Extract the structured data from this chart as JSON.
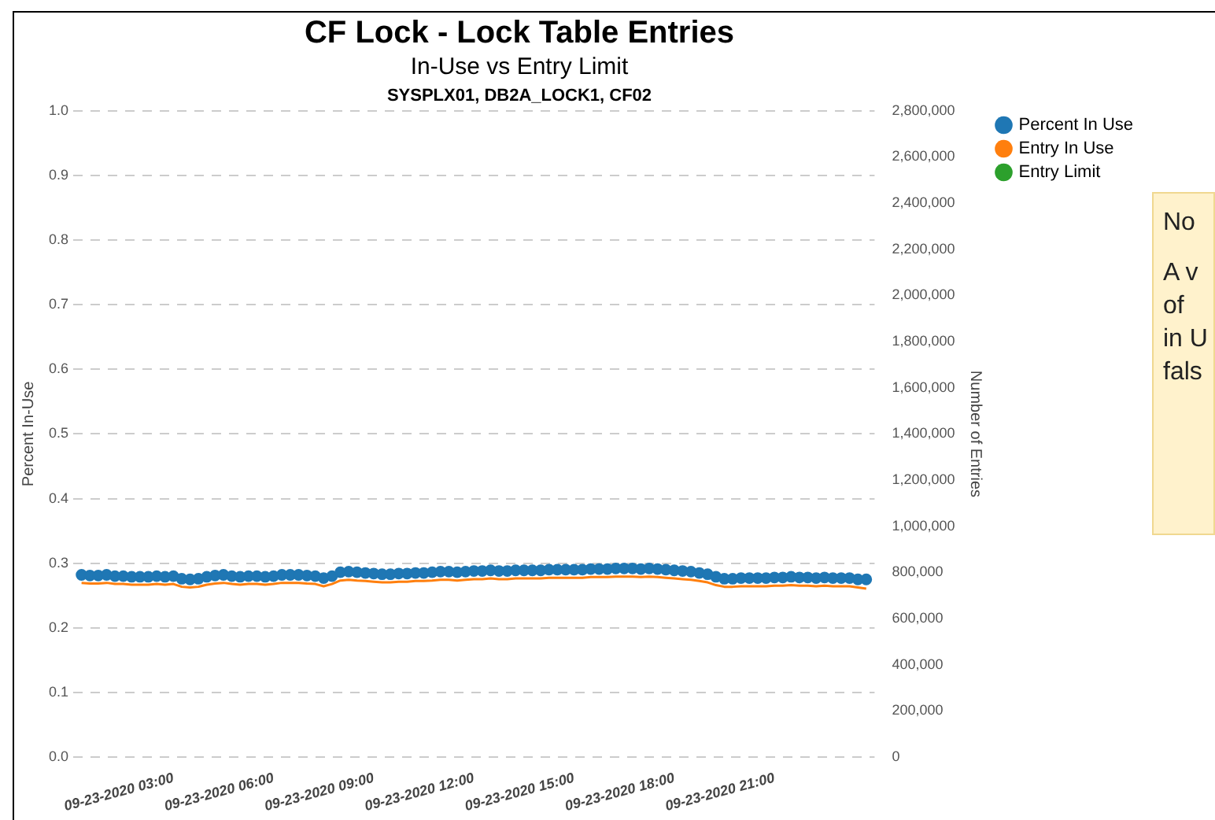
{
  "chart_data": {
    "type": "line",
    "title": "CF Lock - Lock Table Entries",
    "subtitle": "In-Use vs Entry Limit",
    "annotations": [
      "SYSPLX01, DB2A_LOCK1, CF02",
      "No",
      "A v",
      "of",
      "in U",
      "fals"
    ],
    "ylabel": "Percent In-Use",
    "y2label": "Number of Entries",
    "x": [
      "2020-09-23T00:15",
      "2020-09-23T00:30",
      "2020-09-23T00:45",
      "2020-09-23T01:00",
      "2020-09-23T01:15",
      "2020-09-23T01:30",
      "2020-09-23T01:45",
      "2020-09-23T02:00",
      "2020-09-23T02:15",
      "2020-09-23T02:30",
      "2020-09-23T02:45",
      "2020-09-23T03:00",
      "2020-09-23T03:15",
      "2020-09-23T03:30",
      "2020-09-23T03:45",
      "2020-09-23T04:00",
      "2020-09-23T04:15",
      "2020-09-23T04:30",
      "2020-09-23T04:45",
      "2020-09-23T05:00",
      "2020-09-23T05:15",
      "2020-09-23T05:30",
      "2020-09-23T05:45",
      "2020-09-23T06:00",
      "2020-09-23T06:15",
      "2020-09-23T06:30",
      "2020-09-23T06:45",
      "2020-09-23T07:00",
      "2020-09-23T07:15",
      "2020-09-23T07:30",
      "2020-09-23T07:45",
      "2020-09-23T08:00",
      "2020-09-23T08:15",
      "2020-09-23T08:30",
      "2020-09-23T08:45",
      "2020-09-23T09:00",
      "2020-09-23T09:15",
      "2020-09-23T09:30",
      "2020-09-23T09:45",
      "2020-09-23T10:00",
      "2020-09-23T10:15",
      "2020-09-23T10:30",
      "2020-09-23T10:45",
      "2020-09-23T11:00",
      "2020-09-23T11:15",
      "2020-09-23T11:30",
      "2020-09-23T11:45",
      "2020-09-23T12:00",
      "2020-09-23T12:15",
      "2020-09-23T12:30",
      "2020-09-23T12:45",
      "2020-09-23T13:00",
      "2020-09-23T13:15",
      "2020-09-23T13:30",
      "2020-09-23T13:45",
      "2020-09-23T14:00",
      "2020-09-23T14:15",
      "2020-09-23T14:30",
      "2020-09-23T14:45",
      "2020-09-23T15:00",
      "2020-09-23T15:15",
      "2020-09-23T15:30",
      "2020-09-23T15:45",
      "2020-09-23T16:00",
      "2020-09-23T16:15",
      "2020-09-23T16:30",
      "2020-09-23T16:45",
      "2020-09-23T17:00",
      "2020-09-23T17:15",
      "2020-09-23T17:30",
      "2020-09-23T17:45",
      "2020-09-23T18:00",
      "2020-09-23T18:15",
      "2020-09-23T18:30",
      "2020-09-23T18:45",
      "2020-09-23T19:00",
      "2020-09-23T19:15",
      "2020-09-23T19:30",
      "2020-09-23T19:45",
      "2020-09-23T20:00",
      "2020-09-23T20:15",
      "2020-09-23T20:30",
      "2020-09-23T20:45",
      "2020-09-23T21:00",
      "2020-09-23T21:15",
      "2020-09-23T21:30",
      "2020-09-23T21:45",
      "2020-09-23T22:00",
      "2020-09-23T22:15",
      "2020-09-23T22:30",
      "2020-09-23T22:45",
      "2020-09-23T23:00",
      "2020-09-23T23:15",
      "2020-09-23T23:30",
      "2020-09-23T23:45"
    ],
    "xlim": [
      "2020-09-23T00:00",
      "2020-09-24T00:00"
    ],
    "xticks": [
      {
        "value": "2020-09-23T03:00",
        "label": "09-23-2020 03:00"
      },
      {
        "value": "2020-09-23T06:00",
        "label": "09-23-2020 06:00"
      },
      {
        "value": "2020-09-23T09:00",
        "label": "09-23-2020 09:00"
      },
      {
        "value": "2020-09-23T12:00",
        "label": "09-23-2020 12:00"
      },
      {
        "value": "2020-09-23T15:00",
        "label": "09-23-2020 15:00"
      },
      {
        "value": "2020-09-23T18:00",
        "label": "09-23-2020 18:00"
      },
      {
        "value": "2020-09-23T21:00",
        "label": "09-23-2020 21:00"
      }
    ],
    "ylim": [
      0,
      1
    ],
    "yticks": [
      {
        "value": 0,
        "label": "0.0"
      },
      0.1,
      0.2,
      0.3,
      0.4,
      0.5,
      0.6,
      0.7,
      0.8,
      0.9,
      {
        "value": 1,
        "label": "1.0"
      }
    ],
    "y2lim": [
      0,
      2800000
    ],
    "y2ticks": [
      0,
      {
        "value": 200000,
        "label": "200,000"
      },
      {
        "value": 400000,
        "label": "400,000"
      },
      {
        "value": 600000,
        "label": "600,000"
      },
      {
        "value": 800000,
        "label": "800,000"
      },
      {
        "value": 1000000,
        "label": "1,000,000"
      },
      {
        "value": 1200000,
        "label": "1,200,000"
      },
      {
        "value": 1400000,
        "label": "1,400,000"
      },
      {
        "value": 1600000,
        "label": "1,600,000"
      },
      {
        "value": 1800000,
        "label": "1,800,000"
      },
      {
        "value": 2000000,
        "label": "2,000,000"
      },
      {
        "value": 2200000,
        "label": "2,200,000"
      },
      {
        "value": 2400000,
        "label": "2,400,000"
      },
      {
        "value": 2600000,
        "label": "2,600,000"
      },
      {
        "value": 2800000,
        "label": "2,800,000"
      }
    ],
    "series": [
      {
        "name": "Percent In Use",
        "type": "scatter",
        "marker": "circle",
        "color": "#1f77b4",
        "values": [
          0.282,
          0.281,
          0.281,
          0.282,
          0.28,
          0.28,
          0.279,
          0.279,
          0.279,
          0.28,
          0.279,
          0.28,
          0.276,
          0.275,
          0.276,
          0.279,
          0.281,
          0.282,
          0.28,
          0.279,
          0.28,
          0.28,
          0.279,
          0.28,
          0.282,
          0.282,
          0.282,
          0.281,
          0.28,
          0.277,
          0.28,
          0.286,
          0.287,
          0.286,
          0.285,
          0.284,
          0.283,
          0.283,
          0.284,
          0.284,
          0.285,
          0.285,
          0.286,
          0.287,
          0.287,
          0.286,
          0.287,
          0.288,
          0.288,
          0.289,
          0.288,
          0.288,
          0.289,
          0.289,
          0.289,
          0.289,
          0.29,
          0.29,
          0.29,
          0.29,
          0.29,
          0.291,
          0.291,
          0.291,
          0.292,
          0.292,
          0.292,
          0.291,
          0.292,
          0.291,
          0.29,
          0.289,
          0.288,
          0.287,
          0.285,
          0.283,
          0.279,
          0.276,
          0.276,
          0.277,
          0.277,
          0.277,
          0.277,
          0.278,
          0.278,
          0.279,
          0.278,
          0.278,
          0.277,
          0.278,
          0.277,
          0.277,
          0.277,
          0.275,
          0.275
        ]
      },
      {
        "name": "Entry In Use",
        "type": "line",
        "marker": "none",
        "axis": "y2",
        "color": "#ff7f0e",
        "values": [
          755000,
          752000,
          752000,
          755000,
          750000,
          750000,
          747000,
          747000,
          747000,
          750000,
          747000,
          750000,
          738000,
          735000,
          738000,
          747000,
          752000,
          755000,
          750000,
          747000,
          750000,
          750000,
          747000,
          750000,
          755000,
          755000,
          755000,
          752000,
          750000,
          740000,
          750000,
          765000,
          768000,
          765000,
          763000,
          760000,
          757000,
          757000,
          760000,
          760000,
          763000,
          763000,
          765000,
          768000,
          768000,
          765000,
          768000,
          771000,
          771000,
          774000,
          771000,
          771000,
          774000,
          774000,
          774000,
          774000,
          777000,
          777000,
          777000,
          777000,
          777000,
          780000,
          780000,
          780000,
          782000,
          782000,
          782000,
          780000,
          782000,
          780000,
          777000,
          774000,
          771000,
          768000,
          763000,
          757000,
          745000,
          738000,
          738000,
          740000,
          740000,
          740000,
          740000,
          743000,
          743000,
          745000,
          743000,
          743000,
          740000,
          743000,
          740000,
          740000,
          740000,
          735000,
          730000
        ]
      },
      {
        "name": "Entry Limit",
        "type": "line",
        "axis": "y2",
        "color": "#2ca02c",
        "values": [
          null,
          null,
          null,
          null,
          null,
          null,
          null,
          null,
          null,
          null,
          null,
          null,
          null,
          null,
          null,
          null,
          null,
          null,
          null,
          null,
          null,
          null,
          null,
          null,
          null,
          null,
          null,
          null,
          null,
          null,
          null,
          null,
          null,
          null,
          null,
          null,
          null,
          null,
          null,
          null,
          null,
          null,
          null,
          null,
          null,
          null,
          null,
          null,
          null,
          null,
          null,
          null,
          null,
          null,
          null,
          null,
          null,
          null,
          null,
          null,
          null,
          null,
          null,
          null,
          null,
          null,
          null,
          null,
          null,
          null,
          null,
          null,
          null,
          null,
          null,
          null,
          null,
          null,
          null,
          null,
          null,
          null,
          null,
          null,
          null,
          null,
          null,
          null,
          null,
          null,
          null,
          null,
          null,
          null,
          null
        ]
      }
    ],
    "grid": "y",
    "legend": "top right"
  }
}
